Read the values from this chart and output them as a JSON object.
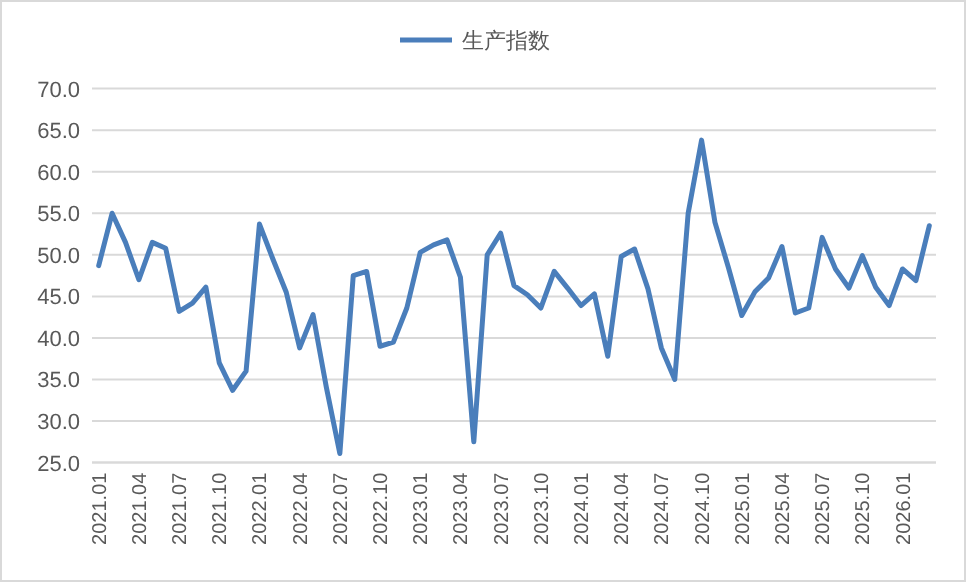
{
  "chart_data": {
    "type": "line",
    "categories": [
      "2021.01",
      null,
      null,
      "2021.04",
      null,
      null,
      "2021.07",
      null,
      null,
      "2021.10",
      null,
      null,
      "2022.01",
      null,
      null,
      "2022.04",
      null,
      null,
      "2022.07",
      null,
      null,
      "2022.10",
      null,
      null,
      "2023.01",
      null,
      null,
      "2023.04",
      null,
      null,
      "2023.07",
      null,
      null,
      "2023.10",
      null,
      null,
      "2024.01",
      null,
      null,
      "2024.04",
      null,
      null,
      "2024.07",
      null,
      null,
      "2024.10",
      null,
      null,
      "2025.01",
      null,
      null,
      "2025.04",
      null,
      null,
      "2025.07",
      null,
      null,
      "2025.10",
      null,
      null,
      "2026.01",
      null,
      null
    ],
    "series": [
      {
        "name": "生产指数",
        "color": "#4a7ebb",
        "values": [
          48.7,
          55.0,
          51.5,
          47.0,
          51.5,
          50.8,
          43.2,
          44.2,
          46.1,
          37.0,
          33.7,
          36.0,
          53.7,
          49.5,
          45.5,
          38.8,
          42.8,
          34.0,
          26.1,
          47.5,
          48.0,
          39.0,
          39.5,
          43.6,
          50.3,
          51.2,
          51.8,
          47.3,
          27.5,
          50.0,
          52.6,
          46.3,
          45.2,
          43.6,
          48.0,
          46.0,
          43.9,
          45.3,
          37.8,
          49.8,
          50.7,
          45.9,
          38.8,
          35.0,
          55.0,
          63.8,
          53.9,
          48.5,
          42.7,
          45.6,
          47.2,
          51.0,
          43.0,
          43.6,
          52.1,
          48.3,
          46.0,
          49.9,
          46.1,
          43.9,
          48.3,
          46.9,
          53.5
        ]
      }
    ],
    "ylim": [
      25,
      70
    ],
    "yticks": [
      {
        "value": 25,
        "label": "25.0"
      },
      {
        "value": 30,
        "label": "30.0"
      },
      {
        "value": 35,
        "label": "35.0"
      },
      {
        "value": 40,
        "label": "40.0"
      },
      {
        "value": 45,
        "label": "45.0"
      },
      {
        "value": 50,
        "label": "50.0"
      },
      {
        "value": 55,
        "label": "55.0"
      },
      {
        "value": 60,
        "label": "60.0"
      },
      {
        "value": 65,
        "label": "65.0"
      },
      {
        "value": 70,
        "label": "70.0"
      }
    ],
    "grid": "y",
    "legend": "top",
    "marker": "none",
    "line_style": "solid"
  }
}
